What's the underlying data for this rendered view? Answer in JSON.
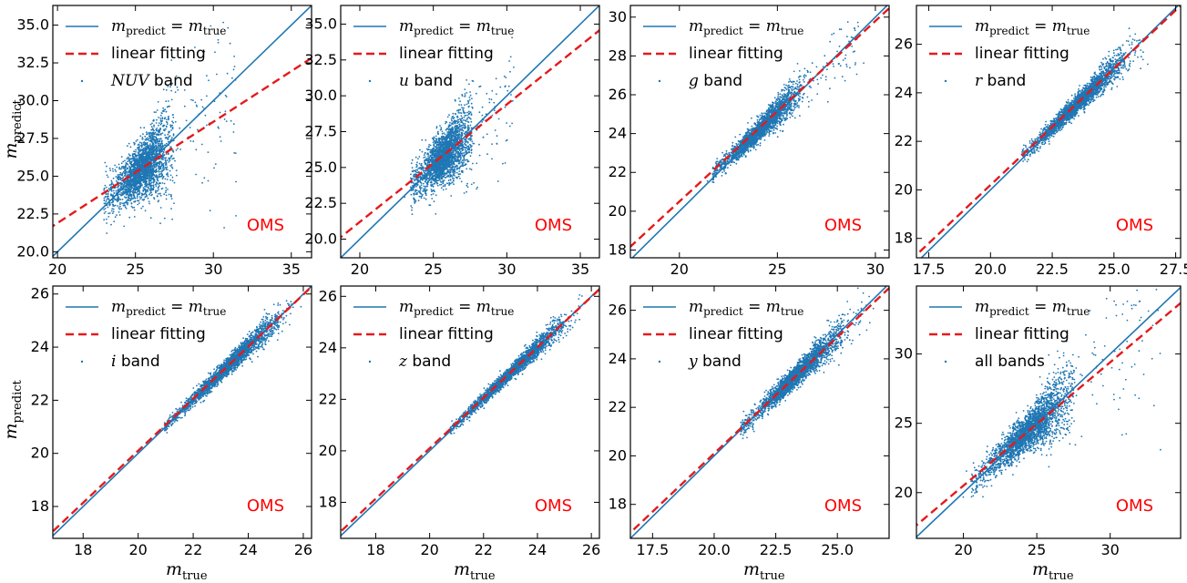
{
  "chart_data": [
    {
      "type": "scatter",
      "band_label": "NUV band",
      "band_math": "NUV",
      "band_suffix": " band",
      "xlim": [
        19.7,
        36.3
      ],
      "ylim": [
        19.6,
        36.3
      ],
      "xticks": [
        20,
        25,
        30,
        35
      ],
      "yticks": [
        20.0,
        22.5,
        25.0,
        27.5,
        30.0,
        32.5,
        35.0
      ],
      "ytick_labels": [
        "20.0",
        "22.5",
        "25.0",
        "27.5",
        "30.0",
        "32.5",
        "35.0"
      ],
      "fit": {
        "slope": 0.67,
        "intercept": 8.5
      },
      "cloud": {
        "center": [
          25.5,
          25.7
        ],
        "spread_x": 1.4,
        "spread_y": 0.85,
        "tail_to": 31.5
      },
      "ylabel": "m_predict",
      "xlabel": ""
    },
    {
      "type": "scatter",
      "band_label": "u band",
      "band_math": "u",
      "band_suffix": " band",
      "xlim": [
        18.7,
        36.3
      ],
      "ylim": [
        18.7,
        36.3
      ],
      "xticks": [
        20,
        25,
        30,
        35
      ],
      "yticks": [
        20.0,
        22.5,
        25.0,
        27.5,
        30.0,
        32.5,
        35.0
      ],
      "ytick_labels": [
        "20.0",
        "22.5",
        "25.0",
        "27.5",
        "30.0",
        "32.5",
        "35.0"
      ],
      "fit": {
        "slope": 0.82,
        "intercept": 4.8
      },
      "cloud": {
        "center": [
          25.8,
          25.8
        ],
        "spread_x": 1.3,
        "spread_y": 0.8,
        "tail_to": 30.5
      },
      "ylabel": "",
      "xlabel": ""
    },
    {
      "type": "scatter",
      "band_label": "g band",
      "band_math": "g",
      "band_suffix": " band",
      "xlim": [
        17.5,
        30.7
      ],
      "ylim": [
        17.6,
        30.6
      ],
      "xticks": [
        20,
        25,
        30
      ],
      "yticks": [
        18,
        20,
        22,
        24,
        26,
        28,
        30
      ],
      "ytick_labels": [
        "18",
        "20",
        "22",
        "24",
        "26",
        "28",
        "30"
      ],
      "fit": {
        "slope": 0.93,
        "intercept": 1.9
      },
      "cloud": {
        "center": [
          24.2,
          24.3
        ],
        "spread_x": 1.4,
        "spread_y": 0.25,
        "tail_to": 29.5
      },
      "ylabel": "",
      "xlabel": ""
    },
    {
      "type": "scatter",
      "band_label": "r band",
      "band_math": "r",
      "band_suffix": " band",
      "xlim": [
        17.0,
        27.7
      ],
      "ylim": [
        17.2,
        27.6
      ],
      "xticks": [
        17.5,
        20.0,
        22.5,
        25.0,
        27.5
      ],
      "yticks": [
        18,
        20,
        22,
        24,
        26
      ],
      "ytick_labels": [
        "18",
        "20",
        "22",
        "24",
        "26"
      ],
      "xtick_labels": [
        "17.5",
        "20.0",
        "22.5",
        "25.0",
        "27.5"
      ],
      "fit": {
        "slope": 0.96,
        "intercept": 1.0
      },
      "cloud": {
        "center": [
          23.6,
          23.6
        ],
        "spread_x": 1.3,
        "spread_y": 0.18,
        "tail_to": 26.2
      },
      "ylabel": "",
      "xlabel": ""
    },
    {
      "type": "scatter",
      "band_label": "i band",
      "band_math": "i",
      "band_suffix": " band",
      "xlim": [
        16.9,
        26.3
      ],
      "ylim": [
        16.8,
        26.3
      ],
      "xticks": [
        18,
        20,
        22,
        24,
        26
      ],
      "yticks": [
        18,
        20,
        22,
        24,
        26
      ],
      "ytick_labels": [
        "18",
        "20",
        "22",
        "24",
        "26"
      ],
      "fit": {
        "slope": 0.98,
        "intercept": 0.5
      },
      "cloud": {
        "center": [
          23.3,
          23.3
        ],
        "spread_x": 1.3,
        "spread_y": 0.14,
        "tail_to": 25.7
      },
      "ylabel": "m_predict",
      "xlabel": "m_true"
    },
    {
      "type": "scatter",
      "band_label": "z band",
      "band_math": "z",
      "band_suffix": " band",
      "xlim": [
        16.7,
        26.3
      ],
      "ylim": [
        16.6,
        26.4
      ],
      "xticks": [
        18,
        20,
        22,
        24,
        26
      ],
      "yticks": [
        18,
        20,
        22,
        24,
        26
      ],
      "ytick_labels": [
        "18",
        "20",
        "22",
        "24",
        "26"
      ],
      "fit": {
        "slope": 0.98,
        "intercept": 0.5
      },
      "cloud": {
        "center": [
          23.1,
          23.1
        ],
        "spread_x": 1.3,
        "spread_y": 0.12,
        "tail_to": 25.6
      },
      "ylabel": "",
      "xlabel": "m_true"
    },
    {
      "type": "scatter",
      "band_label": "y band",
      "band_math": "y",
      "band_suffix": " band",
      "xlim": [
        16.6,
        27.1
      ],
      "ylim": [
        16.6,
        27.0
      ],
      "xticks": [
        17.5,
        20.0,
        22.5,
        25.0
      ],
      "yticks": [
        18,
        20,
        22,
        24,
        26
      ],
      "ytick_labels": [
        "18",
        "20",
        "22",
        "24",
        "26"
      ],
      "xtick_labels": [
        "17.5",
        "20.0",
        "22.5",
        "25.0"
      ],
      "fit": {
        "slope": 0.96,
        "intercept": 0.9
      },
      "cloud": {
        "center": [
          23.4,
          23.4
        ],
        "spread_x": 1.3,
        "spread_y": 0.2,
        "tail_to": 26.5
      },
      "ylabel": "",
      "xlabel": "m_true"
    },
    {
      "type": "scatter",
      "band_label": "all bands",
      "band_math": "",
      "band_suffix": "all bands",
      "xlim": [
        16.8,
        34.8
      ],
      "ylim": [
        16.7,
        34.9
      ],
      "xticks": [
        20,
        25,
        30
      ],
      "yticks": [
        20,
        25,
        30
      ],
      "ytick_labels": [
        "20",
        "25",
        "30"
      ],
      "fit": {
        "slope": 0.89,
        "intercept": 2.7
      },
      "cloud": {
        "center": [
          24.5,
          24.6
        ],
        "spread_x": 2.2,
        "spread_y": 0.6,
        "tail_to": 33.5
      },
      "ylabel": "",
      "xlabel": "m_true"
    }
  ],
  "legend": {
    "identity_math_left": "m",
    "identity_sub_left": "predict",
    "identity_eq": " = ",
    "identity_math_right": "m",
    "identity_sub_right": "true",
    "fit_label": "linear fitting"
  },
  "annotation": "OMS",
  "axis_labels": {
    "y_math": "m",
    "y_sub": "predict",
    "x_math": "m",
    "x_sub": "true"
  },
  "colors": {
    "points": "#1f77b4",
    "identity_line": "#1f77b4",
    "fit_line": "#e41a1c",
    "oms_text": "#ff0000"
  }
}
